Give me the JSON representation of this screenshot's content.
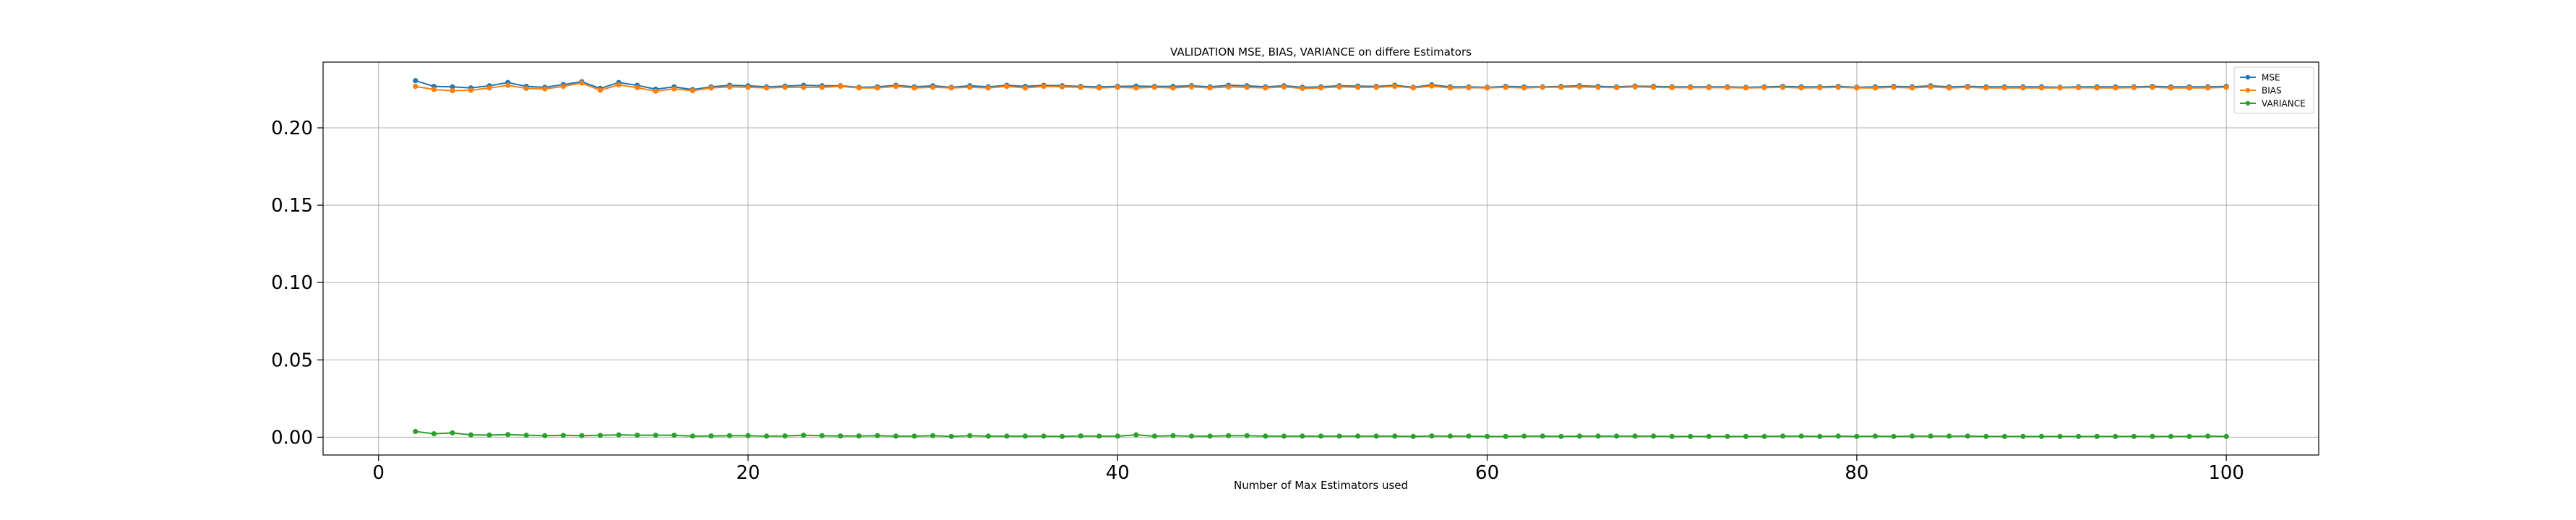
{
  "chart_data": {
    "type": "line",
    "title": "VALIDATION MSE, BIAS, VARIANCE on differe Estimators",
    "xlabel": "Number of Max Estimators used",
    "ylabel": "",
    "xlim": [
      -3,
      105
    ],
    "ylim": [
      -0.0115,
      0.2425
    ],
    "xticks": [
      0,
      20,
      40,
      60,
      80,
      100
    ],
    "yticks": [
      0.0,
      0.05,
      0.1,
      0.15,
      0.2
    ],
    "xtick_labels": [
      "0",
      "20",
      "40",
      "60",
      "80",
      "100"
    ],
    "ytick_labels": [
      "0.00",
      "0.05",
      "0.10",
      "0.15",
      "0.20"
    ],
    "grid": true,
    "legend_position": "upper right",
    "x": [
      2,
      3,
      4,
      5,
      6,
      7,
      8,
      9,
      10,
      11,
      12,
      13,
      14,
      15,
      16,
      17,
      18,
      19,
      20,
      21,
      22,
      23,
      24,
      25,
      26,
      27,
      28,
      29,
      30,
      31,
      32,
      33,
      34,
      35,
      36,
      37,
      38,
      39,
      40,
      41,
      42,
      43,
      44,
      45,
      46,
      47,
      48,
      49,
      50,
      51,
      52,
      53,
      54,
      55,
      56,
      57,
      58,
      59,
      60,
      61,
      62,
      63,
      64,
      65,
      66,
      67,
      68,
      69,
      70,
      71,
      72,
      73,
      74,
      75,
      76,
      77,
      78,
      79,
      80,
      81,
      82,
      83,
      84,
      85,
      86,
      87,
      88,
      89,
      90,
      91,
      92,
      93,
      94,
      95,
      96,
      97,
      98,
      99,
      100
    ],
    "series": [
      {
        "name": "MSE",
        "color": "#1f77b4",
        "values": [
          0.2305,
          0.2268,
          0.2265,
          0.2258,
          0.2272,
          0.2293,
          0.2268,
          0.2262,
          0.228,
          0.2298,
          0.2255,
          0.2293,
          0.2275,
          0.225,
          0.2265,
          0.2247,
          0.2265,
          0.2275,
          0.2272,
          0.2265,
          0.227,
          0.2275,
          0.2272,
          0.2272,
          0.2262,
          0.2265,
          0.2275,
          0.2265,
          0.2272,
          0.2262,
          0.2272,
          0.2265,
          0.2275,
          0.2268,
          0.2275,
          0.2272,
          0.2268,
          0.2265,
          0.2268,
          0.227,
          0.2268,
          0.2268,
          0.2272,
          0.2265,
          0.2275,
          0.2272,
          0.2265,
          0.2272,
          0.2262,
          0.2265,
          0.2272,
          0.227,
          0.2268,
          0.2275,
          0.2262,
          0.2278,
          0.2265,
          0.2265,
          0.2262,
          0.2268,
          0.2265,
          0.2265,
          0.2268,
          0.2272,
          0.2268,
          0.2265,
          0.227,
          0.2268,
          0.2265,
          0.2265,
          0.2265,
          0.2265,
          0.2262,
          0.2265,
          0.2268,
          0.2265,
          0.2265,
          0.2268,
          0.2262,
          0.2265,
          0.2268,
          0.2265,
          0.2272,
          0.2265,
          0.2268,
          0.2265,
          0.2265,
          0.2265,
          0.2265,
          0.2262,
          0.2265,
          0.2265,
          0.2265,
          0.2265,
          0.2268,
          0.2265,
          0.2265,
          0.2265,
          0.2268
        ]
      },
      {
        "name": "BIAS",
        "color": "#ff7f0e",
        "values": [
          0.2268,
          0.2248,
          0.224,
          0.2243,
          0.2258,
          0.2275,
          0.2255,
          0.2252,
          0.2268,
          0.229,
          0.2243,
          0.2278,
          0.226,
          0.2237,
          0.2252,
          0.224,
          0.2258,
          0.2265,
          0.2262,
          0.2258,
          0.2262,
          0.2262,
          0.2262,
          0.2268,
          0.2258,
          0.2258,
          0.2268,
          0.2258,
          0.2262,
          0.2258,
          0.2262,
          0.2258,
          0.2268,
          0.2258,
          0.2268,
          0.2265,
          0.2262,
          0.2258,
          0.2262,
          0.2258,
          0.2262,
          0.2258,
          0.2265,
          0.2258,
          0.2265,
          0.2262,
          0.2258,
          0.2265,
          0.2255,
          0.2258,
          0.2265,
          0.2262,
          0.2262,
          0.2268,
          0.2258,
          0.227,
          0.2258,
          0.226,
          0.2258,
          0.2262,
          0.2258,
          0.2262,
          0.2262,
          0.2265,
          0.2262,
          0.226,
          0.2265,
          0.2262,
          0.226,
          0.226,
          0.226,
          0.226,
          0.2258,
          0.226,
          0.2262,
          0.2258,
          0.226,
          0.2262,
          0.2258,
          0.2258,
          0.2262,
          0.2258,
          0.2265,
          0.2258,
          0.2262,
          0.2258,
          0.2258,
          0.2258,
          0.2258,
          0.2258,
          0.226,
          0.2258,
          0.2258,
          0.226,
          0.2262,
          0.2258,
          0.2258,
          0.2258,
          0.2262
        ]
      },
      {
        "name": "VARIANCE",
        "color": "#2ca02c",
        "values": [
          0.0037,
          0.0022,
          0.0028,
          0.0015,
          0.0014,
          0.0017,
          0.0013,
          0.001,
          0.0012,
          0.001,
          0.0012,
          0.0015,
          0.0013,
          0.0013,
          0.0013,
          0.0007,
          0.0008,
          0.001,
          0.001,
          0.0007,
          0.0008,
          0.0013,
          0.001,
          0.0008,
          0.0008,
          0.001,
          0.0007,
          0.0007,
          0.001,
          0.0005,
          0.001,
          0.0007,
          0.0007,
          0.0007,
          0.0007,
          0.0005,
          0.0008,
          0.0007,
          0.0007,
          0.0015,
          0.0007,
          0.001,
          0.0007,
          0.0007,
          0.001,
          0.001,
          0.0007,
          0.0007,
          0.0007,
          0.0007,
          0.0007,
          0.0007,
          0.0007,
          0.0007,
          0.0005,
          0.0008,
          0.0007,
          0.0007,
          0.0005,
          0.0005,
          0.0007,
          0.0007,
          0.0005,
          0.0007,
          0.0007,
          0.0007,
          0.0007,
          0.0007,
          0.0005,
          0.0005,
          0.0005,
          0.0005,
          0.0005,
          0.0005,
          0.0007,
          0.0007,
          0.0005,
          0.0007,
          0.0005,
          0.0007,
          0.0005,
          0.0007,
          0.0007,
          0.0007,
          0.0007,
          0.0005,
          0.0005,
          0.0005,
          0.0005,
          0.0005,
          0.0005,
          0.0005,
          0.0005,
          0.0005,
          0.0005,
          0.0005,
          0.0005,
          0.0007,
          0.0005
        ]
      }
    ]
  }
}
